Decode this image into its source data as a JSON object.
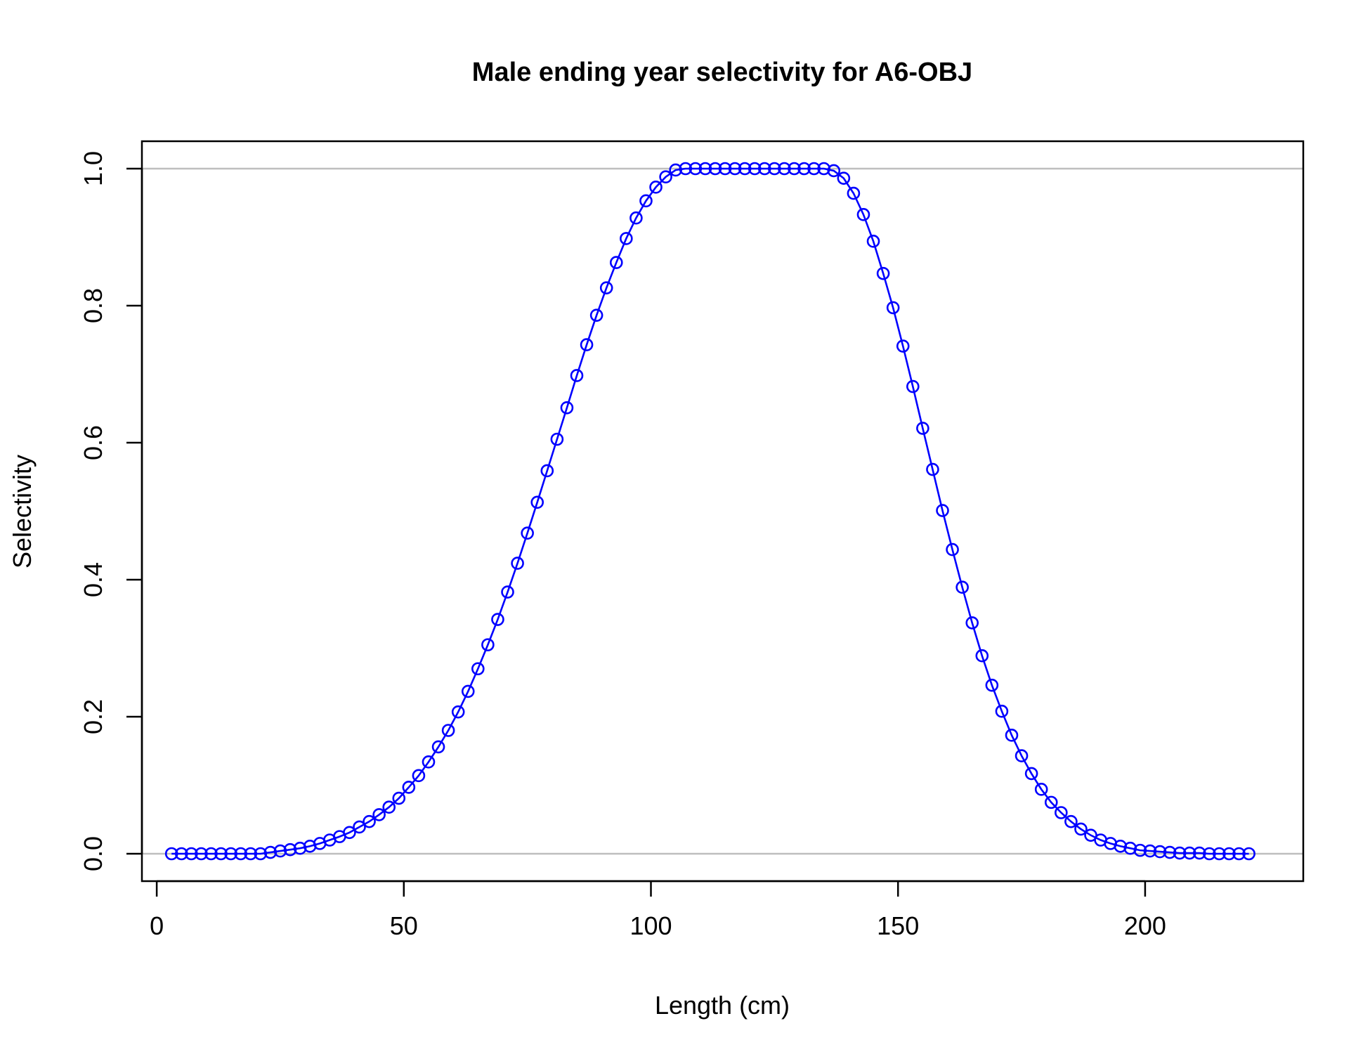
{
  "chart_data": {
    "type": "line",
    "title": "Male ending year selectivity for A6-OBJ",
    "xlabel": "Length (cm)",
    "ylabel": "Selectivity",
    "xlim": [
      -3,
      232
    ],
    "ylim": [
      -0.04,
      1.04
    ],
    "x_ticks": [
      0,
      50,
      100,
      150,
      200
    ],
    "x_tick_labels": [
      "0",
      "50",
      "100",
      "150",
      "200"
    ],
    "y_ticks": [
      0.0,
      0.2,
      0.4,
      0.6,
      0.8,
      1.0
    ],
    "y_tick_labels": [
      "0.0",
      "0.2",
      "0.4",
      "0.6",
      "0.8",
      "1.0"
    ],
    "reference_lines": [
      0,
      1
    ],
    "reference_line_color": "#bebebe",
    "series_color": "#0000ff",
    "markers": "open-circle",
    "series": [
      {
        "x": [
          3,
          5,
          7,
          9,
          11,
          13,
          15,
          17,
          19,
          21,
          23,
          25,
          27,
          29,
          31,
          33,
          35,
          37,
          39,
          41,
          43,
          45,
          47,
          49,
          51,
          53,
          55,
          57,
          59,
          61,
          63,
          65,
          67,
          69,
          71,
          73,
          75,
          77,
          79,
          81,
          83,
          85,
          87,
          89,
          91,
          93,
          95,
          97,
          99,
          101,
          103,
          105,
          107,
          109,
          111,
          113,
          115,
          117,
          119,
          121,
          123,
          125,
          127,
          129,
          131,
          133,
          135,
          137,
          139,
          141,
          143,
          145,
          147,
          149,
          151,
          153,
          155,
          157,
          159,
          161,
          163,
          165,
          167,
          169,
          171,
          173,
          175,
          177,
          179,
          181,
          183,
          185,
          187,
          189,
          191,
          193,
          195,
          197,
          199,
          201,
          203,
          205,
          207,
          209,
          211,
          213,
          215,
          217,
          219,
          221
        ],
        "values": [
          0.0,
          0.0,
          0.0,
          0.0,
          0.0,
          0.0,
          0.0,
          0.0,
          0.0,
          0.0,
          0.002,
          0.004,
          0.006,
          0.008,
          0.011,
          0.015,
          0.02,
          0.025,
          0.031,
          0.039,
          0.047,
          0.057,
          0.068,
          0.081,
          0.097,
          0.114,
          0.134,
          0.156,
          0.18,
          0.207,
          0.237,
          0.27,
          0.305,
          0.342,
          0.382,
          0.424,
          0.468,
          0.513,
          0.559,
          0.605,
          0.651,
          0.698,
          0.743,
          0.786,
          0.826,
          0.863,
          0.898,
          0.928,
          0.953,
          0.973,
          0.988,
          0.998,
          1.0,
          1.0,
          1.0,
          1.0,
          1.0,
          1.0,
          1.0,
          1.0,
          1.0,
          1.0,
          1.0,
          1.0,
          1.0,
          1.0,
          1.0,
          0.997,
          0.986,
          0.964,
          0.933,
          0.894,
          0.847,
          0.797,
          0.741,
          0.682,
          0.621,
          0.561,
          0.501,
          0.444,
          0.389,
          0.337,
          0.289,
          0.246,
          0.208,
          0.173,
          0.143,
          0.117,
          0.094,
          0.075,
          0.06,
          0.047,
          0.036,
          0.027,
          0.02,
          0.015,
          0.011,
          0.008,
          0.005,
          0.004,
          0.003,
          0.002,
          0.001,
          0.001,
          0.001,
          0.0,
          0.0,
          0.0,
          0.0,
          0.0
        ]
      }
    ]
  }
}
